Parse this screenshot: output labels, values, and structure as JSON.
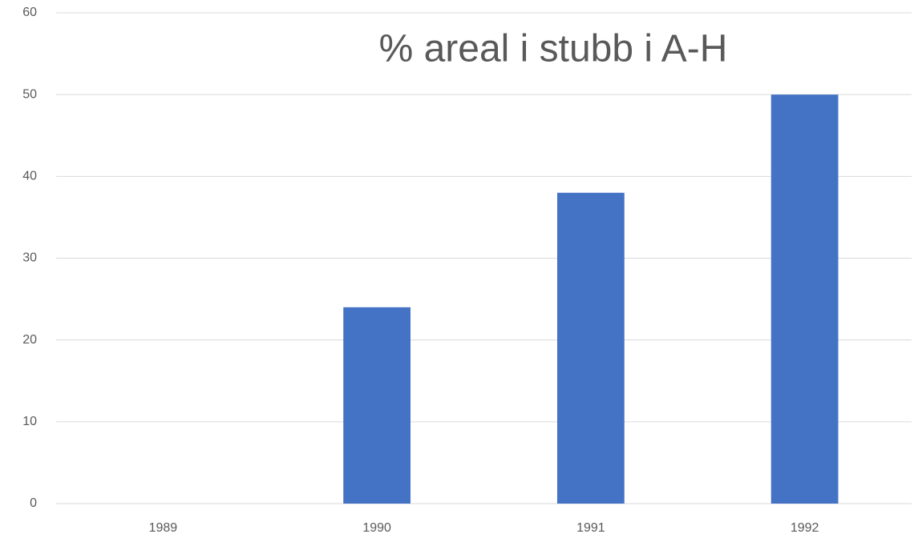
{
  "chart_data": {
    "type": "bar",
    "title": "% areal i stubb i A-H",
    "categories": [
      "1989",
      "1990",
      "1991",
      "1992"
    ],
    "values": [
      0,
      24,
      38,
      50
    ],
    "color": "#4472c4",
    "ylim": [
      0,
      60
    ],
    "yticks": [
      0,
      10,
      20,
      30,
      40,
      50,
      60
    ],
    "grid": true
  }
}
